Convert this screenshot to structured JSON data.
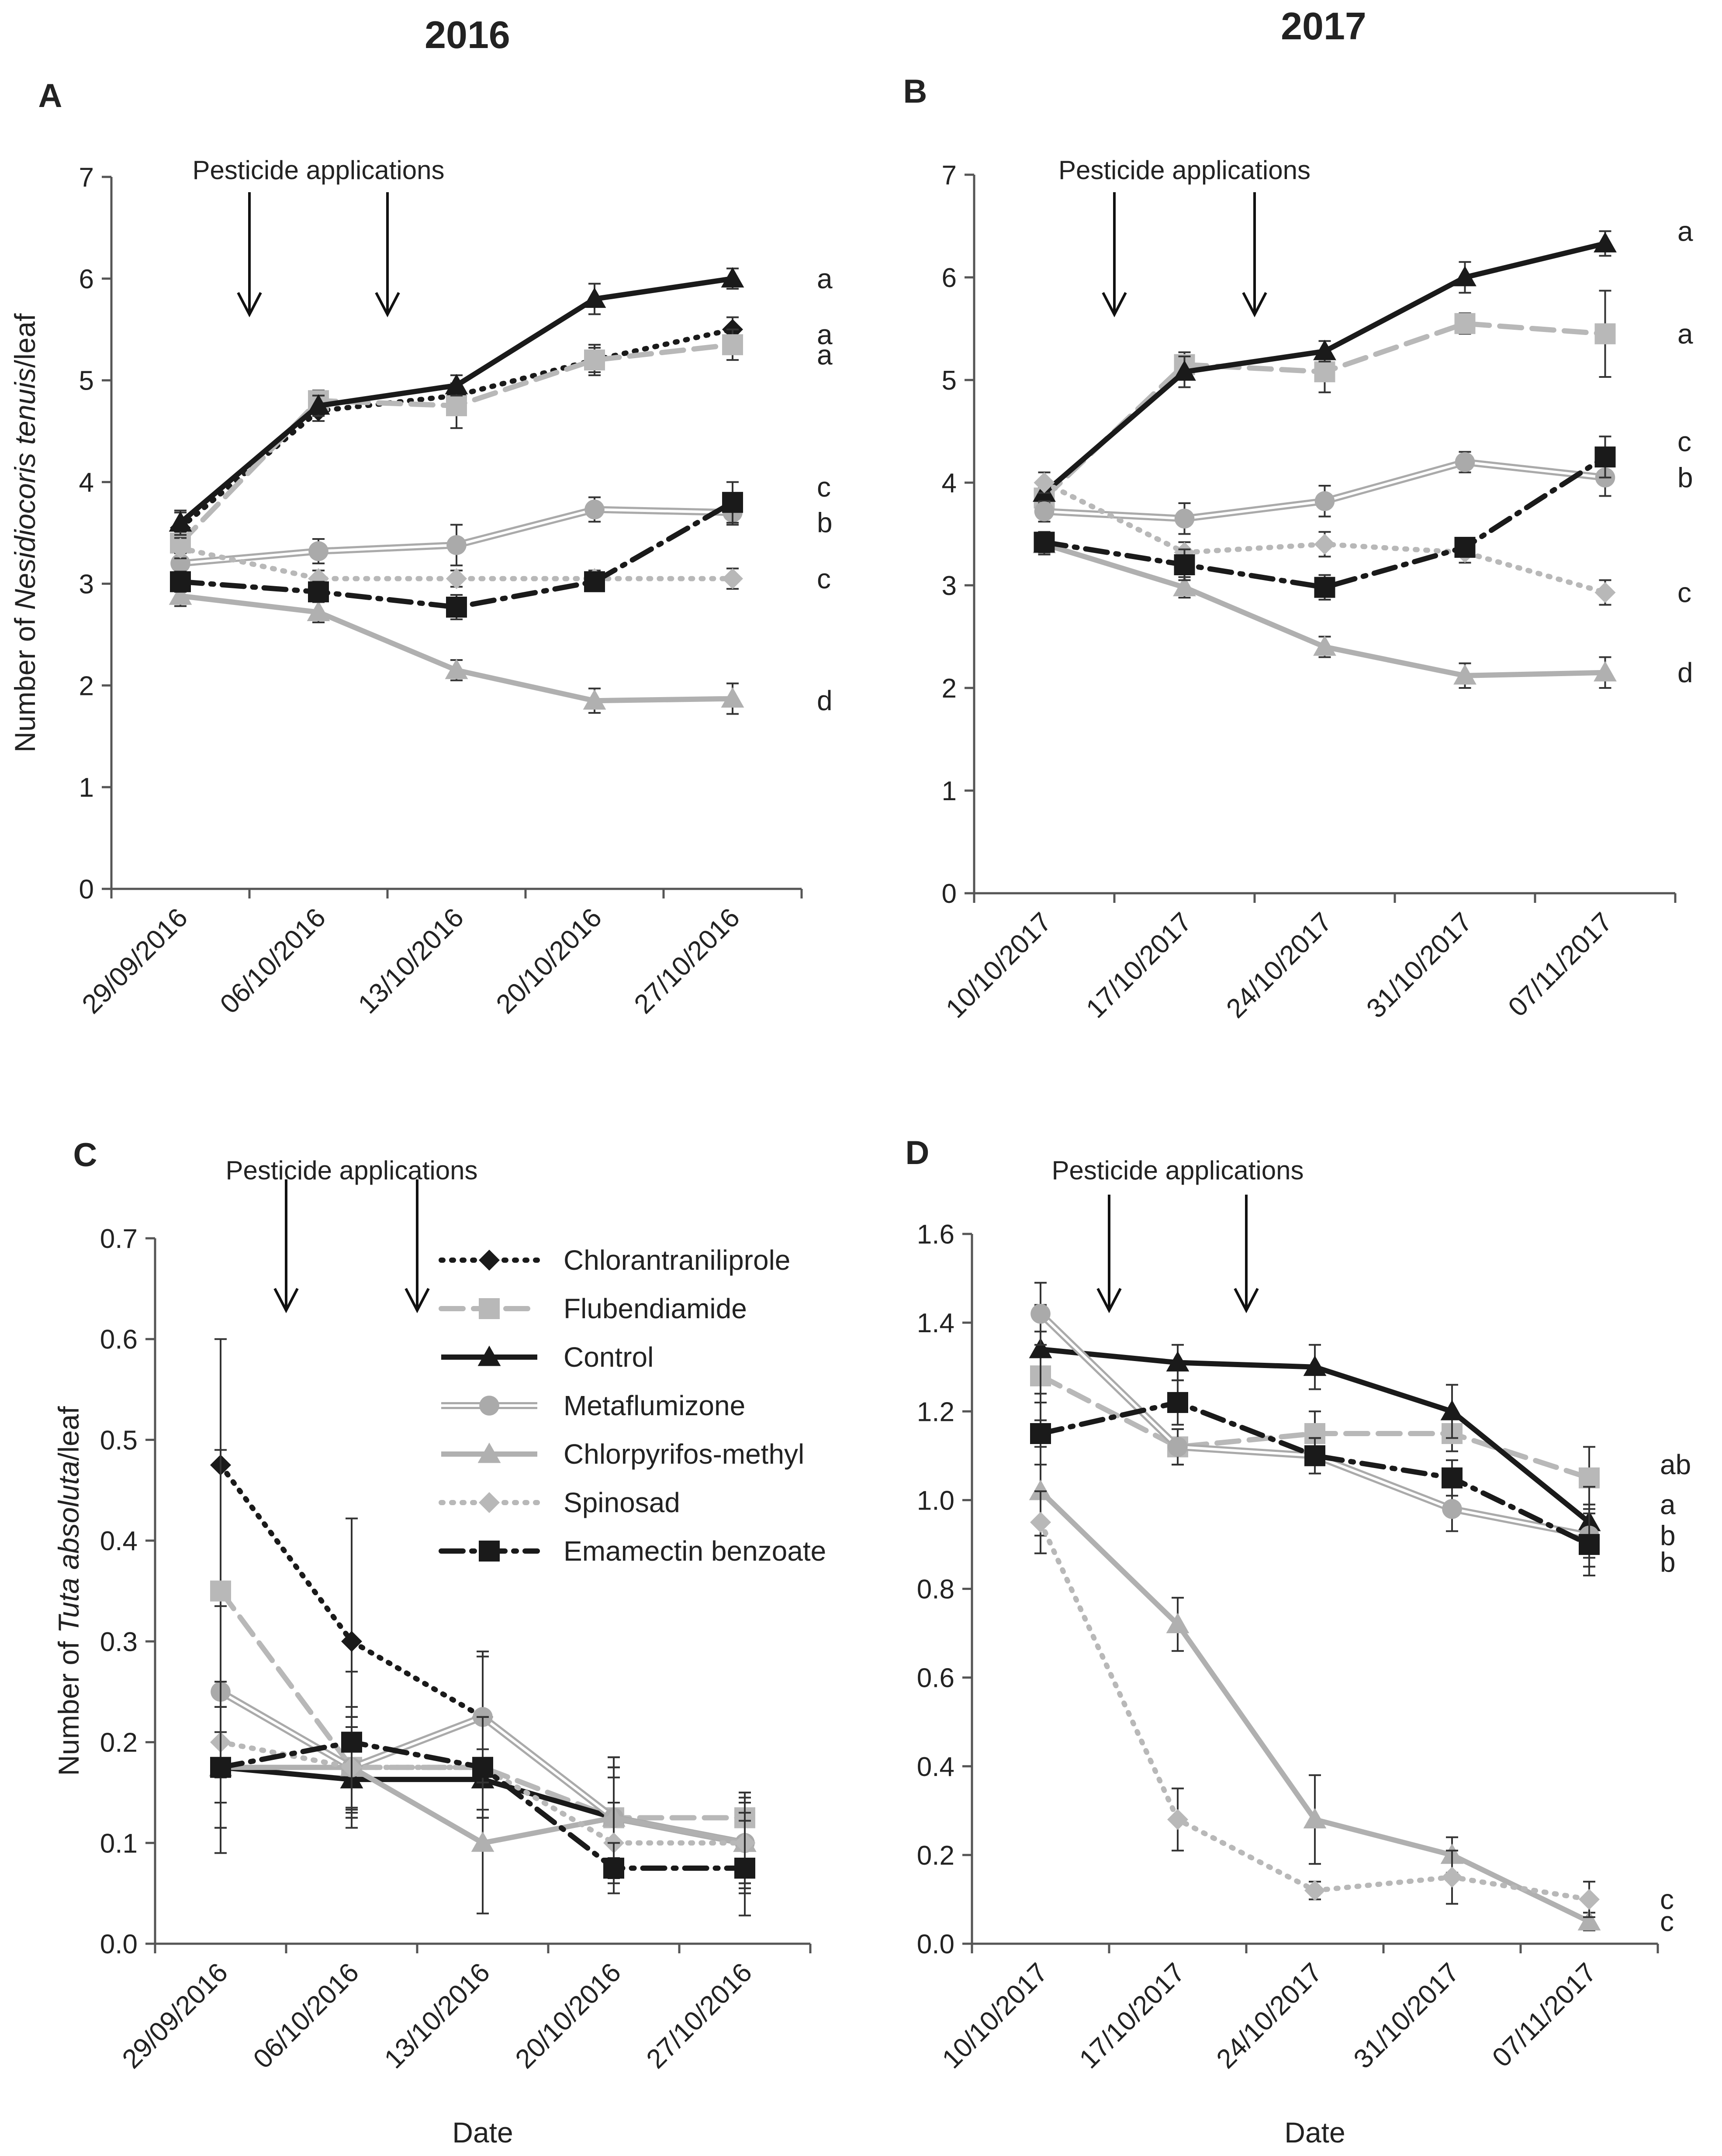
{
  "figure": {
    "year_labels": [
      "2016",
      "2017"
    ],
    "pesticide_label": "Pesticide applications",
    "xlabel": "Date"
  },
  "colors": {
    "black": "#1a1a1a",
    "gray": "#a9a9a9",
    "light_gray": "#c8c8c8"
  },
  "legend": [
    {
      "name": "Chlorantraniliprole",
      "color": "#1a1a1a",
      "dash": "dotted",
      "marker": "diamond",
      "double": false
    },
    {
      "name": "Flubendiamide",
      "color": "#b8b8b8",
      "dash": "dashed",
      "marker": "square",
      "double": false
    },
    {
      "name": "Control",
      "color": "#1a1a1a",
      "dash": "solid",
      "marker": "triangle",
      "double": false
    },
    {
      "name": "Metaflumizone",
      "color": "#aaaaaa",
      "dash": "solid",
      "marker": "circle",
      "double": true
    },
    {
      "name": "Chlorpyrifos-methyl",
      "color": "#b0b0b0",
      "dash": "solid",
      "marker": "triangle",
      "double": false
    },
    {
      "name": "Spinosad",
      "color": "#b8b8b8",
      "dash": "dotted",
      "marker": "diamond",
      "double": false
    },
    {
      "name": "Emamectin benzoate",
      "color": "#1a1a1a",
      "dash": "dashdot",
      "marker": "square",
      "double": false
    }
  ],
  "chart_data": [
    {
      "panel": "A",
      "type": "line",
      "ylabel_parts": [
        "Number of ",
        "Nesidiocoris tenuis",
        "/leaf"
      ],
      "categories": [
        "29/09/2016",
        "06/10/2016",
        "13/10/2016",
        "20/10/2016",
        "27/10/2016"
      ],
      "ylim": [
        0,
        7
      ],
      "yticks": [
        0,
        1,
        2,
        3,
        4,
        5,
        6,
        7
      ],
      "decimals": 0,
      "application_dates": [
        0.5,
        1.5
      ],
      "series": [
        {
          "name": "Chlorantraniliprole",
          "values": [
            3.55,
            4.7,
            4.85,
            5.2,
            5.5
          ],
          "errors": [
            0.15,
            0.1,
            0.12,
            0.12,
            0.12
          ],
          "letter": "a"
        },
        {
          "name": "Flubendiamide",
          "values": [
            3.4,
            4.8,
            4.75,
            5.2,
            5.35
          ],
          "errors": [
            0.15,
            0.1,
            0.22,
            0.15,
            0.15
          ],
          "letter": "a"
        },
        {
          "name": "Control",
          "values": [
            3.6,
            4.75,
            4.95,
            5.8,
            6.0
          ],
          "errors": [
            0.12,
            0.1,
            0.1,
            0.15,
            0.1
          ],
          "letter": "a"
        },
        {
          "name": "Metaflumizone",
          "values": [
            3.2,
            3.32,
            3.38,
            3.73,
            3.7
          ],
          "errors": [
            0.1,
            0.12,
            0.2,
            0.12,
            0.12
          ],
          "letter": "b"
        },
        {
          "name": "Chlorpyrifos-methyl",
          "values": [
            2.88,
            2.72,
            2.15,
            1.85,
            1.87
          ],
          "errors": [
            0.1,
            0.1,
            0.1,
            0.12,
            0.15
          ],
          "letter": "d"
        },
        {
          "name": "Spinosad",
          "values": [
            3.35,
            3.05,
            3.05,
            3.05,
            3.05
          ],
          "errors": [
            0.1,
            0.08,
            0.08,
            0.08,
            0.1
          ],
          "letter": "c"
        },
        {
          "name": "Emamectin benzoate",
          "values": [
            3.02,
            2.92,
            2.77,
            3.02,
            3.8
          ],
          "errors": [
            0.1,
            0.1,
            0.12,
            0.08,
            0.2
          ],
          "letter": "c"
        }
      ],
      "letters": [
        {
          "text": "a",
          "value": 6.0
        },
        {
          "text": "a",
          "value": 5.45
        },
        {
          "text": "a",
          "value": 5.25
        },
        {
          "text": "c",
          "value": 3.95
        },
        {
          "text": "b",
          "value": 3.6
        },
        {
          "text": "c",
          "value": 3.05
        },
        {
          "text": "d",
          "value": 1.85
        }
      ]
    },
    {
      "panel": "B",
      "type": "line",
      "ylabel_parts": [
        "",
        "",
        ""
      ],
      "categories": [
        "10/10/2017",
        "17/10/2017",
        "24/10/2017",
        "31/10/2017",
        "07/11/2017"
      ],
      "ylim": [
        0,
        7
      ],
      "yticks": [
        0,
        1,
        2,
        3,
        4,
        5,
        6,
        7
      ],
      "decimals": 0,
      "application_dates": [
        0.5,
        1.5
      ],
      "series": [
        {
          "name": "Flubendiamide",
          "values": [
            3.85,
            5.15,
            5.08,
            5.55,
            5.45
          ],
          "errors": [
            0.1,
            0.12,
            0.2,
            0.1,
            0.42
          ],
          "letter": "a"
        },
        {
          "name": "Control",
          "values": [
            3.9,
            5.08,
            5.28,
            6.0,
            6.33
          ],
          "errors": [
            0.1,
            0.15,
            0.1,
            0.15,
            0.12
          ],
          "letter": "a"
        },
        {
          "name": "Metaflumizone",
          "values": [
            3.72,
            3.65,
            3.82,
            4.2,
            4.05
          ],
          "errors": [
            0.1,
            0.15,
            0.15,
            0.1,
            0.18
          ],
          "letter": "b"
        },
        {
          "name": "Chlorpyrifos-methyl",
          "values": [
            3.4,
            2.98,
            2.4,
            2.12,
            2.15
          ],
          "errors": [
            0.1,
            0.1,
            0.1,
            0.12,
            0.15
          ],
          "letter": "d"
        },
        {
          "name": "Spinosad",
          "values": [
            4.0,
            3.32,
            3.4,
            3.32,
            2.93
          ],
          "errors": [
            0.1,
            0.1,
            0.12,
            0.1,
            0.12
          ],
          "letter": "c"
        },
        {
          "name": "Emamectin benzoate",
          "values": [
            3.42,
            3.2,
            2.98,
            3.37,
            4.25
          ],
          "errors": [
            0.1,
            0.15,
            0.12,
            0.08,
            0.2
          ],
          "letter": "c"
        }
      ],
      "letters": [
        {
          "text": "a",
          "value": 6.45
        },
        {
          "text": "a",
          "value": 5.45
        },
        {
          "text": "c",
          "value": 4.4
        },
        {
          "text": "b",
          "value": 4.05
        },
        {
          "text": "c",
          "value": 2.93
        },
        {
          "text": "d",
          "value": 2.15
        }
      ]
    },
    {
      "panel": "C",
      "type": "line",
      "ylabel_parts": [
        "Number of ",
        "Tuta absoluta",
        "/leaf"
      ],
      "categories": [
        "29/09/2016",
        "06/10/2016",
        "13/10/2016",
        "20/10/2016",
        "27/10/2016"
      ],
      "ylim": [
        0,
        0.7
      ],
      "yticks": [
        0,
        0.1,
        0.2,
        0.3,
        0.4,
        0.5,
        0.6,
        0.7
      ],
      "decimals": 1,
      "application_dates": [
        0.5,
        1.5
      ],
      "series": [
        {
          "name": "Chlorantraniliprole",
          "values": [
            0.475,
            0.3,
            0.225,
            0.125,
            0.1
          ],
          "errors": [
            0.125,
            0.122,
            0.06,
            0.06,
            0.05
          ],
          "letter": ""
        },
        {
          "name": "Flubendiamide",
          "values": [
            0.35,
            0.175,
            0.175,
            0.125,
            0.125
          ],
          "errors": [
            0.14,
            0.05,
            0.05,
            0.06,
            0.025
          ],
          "letter": ""
        },
        {
          "name": "Control",
          "values": [
            0.175,
            0.163,
            0.163,
            0.125,
            0.1
          ],
          "errors": [
            0.085,
            0.03,
            0.03,
            0.05,
            0.04
          ],
          "letter": ""
        },
        {
          "name": "Metaflumizone",
          "values": [
            0.25,
            0.175,
            0.225,
            0.125,
            0.1
          ],
          "errors": [
            0.085,
            0.06,
            0.065,
            0.05,
            0.045
          ],
          "letter": ""
        },
        {
          "name": "Chlorpyrifos-methyl",
          "values": [
            0.175,
            0.175,
            0.1,
            0.125,
            0.1
          ],
          "errors": [
            0.06,
            0.04,
            0.07,
            0.04,
            0.04
          ],
          "letter": ""
        },
        {
          "name": "Spinosad",
          "values": [
            0.2,
            0.175,
            0.175,
            0.1,
            0.1
          ],
          "errors": [
            0.06,
            0.05,
            0.05,
            0.04,
            0.03
          ],
          "letter": ""
        },
        {
          "name": "Emamectin benzoate",
          "values": [
            0.175,
            0.2,
            0.175,
            0.075,
            0.075
          ],
          "errors": [
            0.06,
            0.07,
            0.05,
            0.025,
            0.047
          ],
          "letter": ""
        }
      ],
      "letters": []
    },
    {
      "panel": "D",
      "type": "line",
      "ylabel_parts": [
        "",
        "",
        ""
      ],
      "categories": [
        "10/10/2017",
        "17/10/2017",
        "24/10/2017",
        "31/10/2017",
        "07/11/2017"
      ],
      "ylim": [
        0,
        1.6
      ],
      "yticks": [
        0,
        0.2,
        0.4,
        0.6,
        0.8,
        1.0,
        1.2,
        1.4,
        1.6
      ],
      "decimals": 1,
      "application_dates": [
        0.5,
        1.5
      ],
      "series": [
        {
          "name": "Flubendiamide",
          "values": [
            1.28,
            1.12,
            1.15,
            1.15,
            1.05
          ],
          "errors": [
            0.1,
            0.04,
            0.05,
            0.04,
            0.07
          ],
          "letter": "ab"
        },
        {
          "name": "Control",
          "values": [
            1.34,
            1.31,
            1.3,
            1.2,
            0.95
          ],
          "errors": [
            0.1,
            0.04,
            0.05,
            0.06,
            0.08
          ],
          "letter": "a"
        },
        {
          "name": "Metaflumizone",
          "values": [
            1.42,
            1.12,
            1.1,
            0.98,
            0.92
          ],
          "errors": [
            0.07,
            0.04,
            0.04,
            0.05,
            0.07
          ],
          "letter": "b"
        },
        {
          "name": "Chlorpyrifos-methyl",
          "values": [
            1.02,
            0.72,
            0.28,
            0.2,
            0.05
          ],
          "errors": [
            0.1,
            0.06,
            0.1,
            0.04,
            0.02
          ],
          "letter": "c"
        },
        {
          "name": "Spinosad",
          "values": [
            0.95,
            0.28,
            0.12,
            0.15,
            0.1
          ],
          "errors": [
            0.07,
            0.07,
            0.02,
            0.06,
            0.04
          ],
          "letter": "c"
        },
        {
          "name": "Emamectin benzoate",
          "values": [
            1.15,
            1.22,
            1.1,
            1.05,
            0.9
          ],
          "errors": [
            0.07,
            0.05,
            0.04,
            0.04,
            0.07
          ],
          "letter": "b"
        }
      ],
      "letters": [
        {
          "text": "ab",
          "value": 1.08
        },
        {
          "text": "a",
          "value": 0.99
        },
        {
          "text": "b",
          "value": 0.92
        },
        {
          "text": "b",
          "value": 0.86
        },
        {
          "text": "c",
          "value": 0.1
        },
        {
          "text": "c",
          "value": 0.05
        }
      ]
    }
  ]
}
